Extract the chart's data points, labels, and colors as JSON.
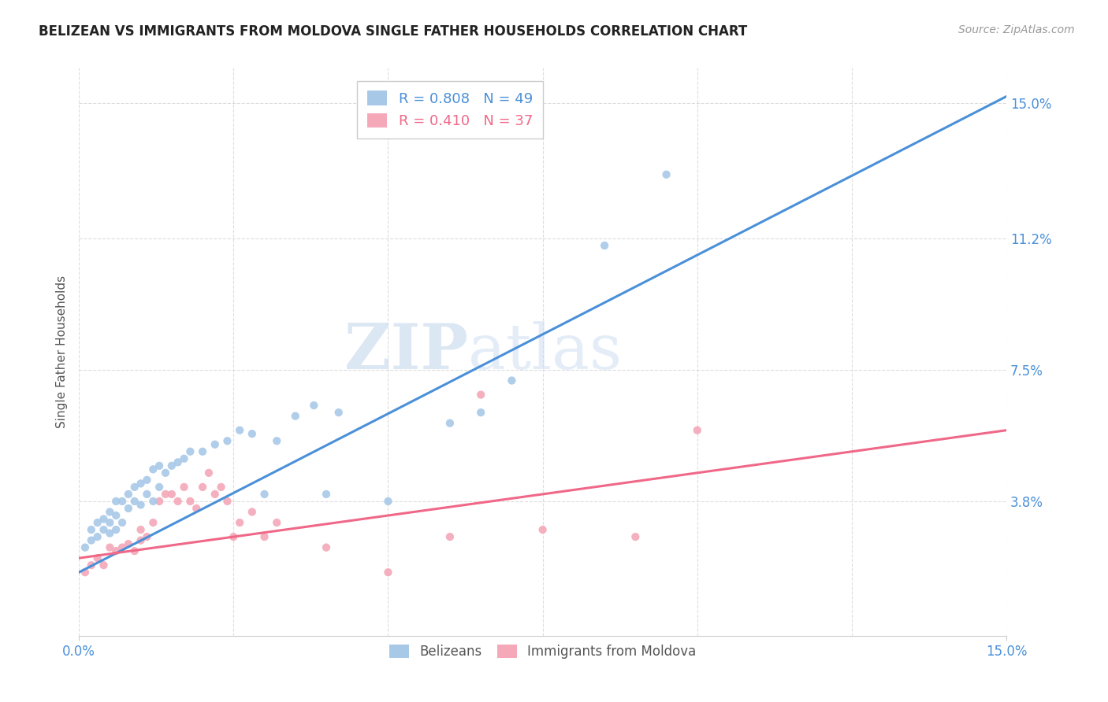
{
  "title": "BELIZEAN VS IMMIGRANTS FROM MOLDOVA SINGLE FATHER HOUSEHOLDS CORRELATION CHART",
  "source": "Source: ZipAtlas.com",
  "ylabel": "Single Father Households",
  "xlim": [
    0.0,
    0.15
  ],
  "ylim": [
    0.0,
    0.16
  ],
  "ytick_values": [
    0.038,
    0.075,
    0.112,
    0.15
  ],
  "ytick_labels": [
    "3.8%",
    "7.5%",
    "11.2%",
    "15.0%"
  ],
  "belizean_color": "#a8c8e8",
  "moldova_color": "#f4a8b8",
  "belizean_line_color": "#4a90d9",
  "moldova_line_color": "#f06888",
  "belizean_R": "0.808",
  "belizean_N": "49",
  "moldova_R": "0.410",
  "moldova_N": "37",
  "watermark_zip": "ZIP",
  "watermark_atlas": "atlas",
  "belizean_scatter_x": [
    0.001,
    0.002,
    0.002,
    0.003,
    0.003,
    0.004,
    0.004,
    0.005,
    0.005,
    0.005,
    0.006,
    0.006,
    0.006,
    0.007,
    0.007,
    0.008,
    0.008,
    0.009,
    0.009,
    0.01,
    0.01,
    0.011,
    0.011,
    0.012,
    0.012,
    0.013,
    0.013,
    0.014,
    0.015,
    0.016,
    0.017,
    0.018,
    0.02,
    0.022,
    0.024,
    0.026,
    0.028,
    0.03,
    0.032,
    0.035,
    0.038,
    0.04,
    0.042,
    0.05,
    0.06,
    0.065,
    0.07,
    0.085,
    0.095
  ],
  "belizean_scatter_y": [
    0.025,
    0.027,
    0.03,
    0.028,
    0.032,
    0.03,
    0.033,
    0.029,
    0.032,
    0.035,
    0.03,
    0.034,
    0.038,
    0.032,
    0.038,
    0.036,
    0.04,
    0.038,
    0.042,
    0.037,
    0.043,
    0.04,
    0.044,
    0.038,
    0.047,
    0.042,
    0.048,
    0.046,
    0.048,
    0.049,
    0.05,
    0.052,
    0.052,
    0.054,
    0.055,
    0.058,
    0.057,
    0.04,
    0.055,
    0.062,
    0.065,
    0.04,
    0.063,
    0.038,
    0.06,
    0.063,
    0.072,
    0.11,
    0.13
  ],
  "moldova_scatter_x": [
    0.001,
    0.002,
    0.003,
    0.004,
    0.005,
    0.006,
    0.007,
    0.008,
    0.009,
    0.01,
    0.01,
    0.011,
    0.012,
    0.013,
    0.014,
    0.015,
    0.016,
    0.017,
    0.018,
    0.019,
    0.02,
    0.021,
    0.022,
    0.023,
    0.024,
    0.025,
    0.026,
    0.028,
    0.03,
    0.032,
    0.04,
    0.05,
    0.06,
    0.065,
    0.075,
    0.09,
    0.1
  ],
  "moldova_scatter_y": [
    0.018,
    0.02,
    0.022,
    0.02,
    0.025,
    0.024,
    0.025,
    0.026,
    0.024,
    0.027,
    0.03,
    0.028,
    0.032,
    0.038,
    0.04,
    0.04,
    0.038,
    0.042,
    0.038,
    0.036,
    0.042,
    0.046,
    0.04,
    0.042,
    0.038,
    0.028,
    0.032,
    0.035,
    0.028,
    0.032,
    0.025,
    0.018,
    0.028,
    0.068,
    0.03,
    0.028,
    0.058
  ],
  "belizean_line_x": [
    0.0,
    0.15
  ],
  "belizean_line_y": [
    0.018,
    0.152
  ],
  "moldova_line_x": [
    0.0,
    0.15
  ],
  "moldova_line_y": [
    0.022,
    0.058
  ],
  "background_color": "#ffffff",
  "grid_color": "#dddddd",
  "tick_color": "#4a90d9",
  "axis_label_color": "#555555",
  "title_color": "#222222"
}
